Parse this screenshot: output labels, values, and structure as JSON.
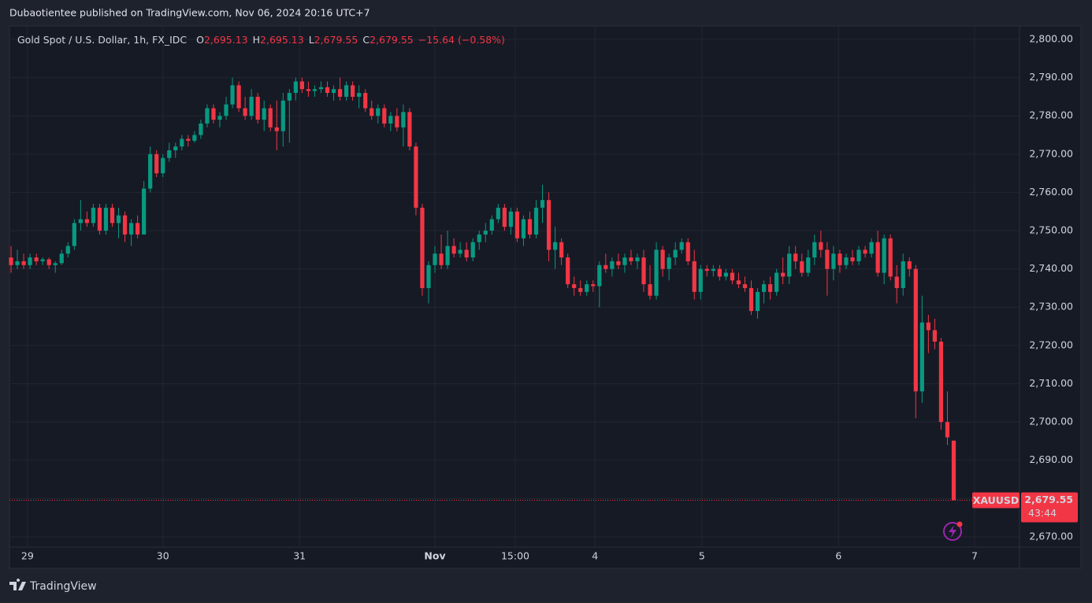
{
  "chart_data": {
    "type": "candlestick",
    "publisher": "Dubaotientee published on TradingView.com, Nov 06, 2024 20:16 UTC+7",
    "symbol": "Gold Spot / U.S. Dollar, 1h, FX_IDC",
    "ohlc_legend": [
      {
        "key": "O",
        "value": "2,695.13"
      },
      {
        "key": "H",
        "value": "2,695.13"
      },
      {
        "key": "L",
        "value": "2,679.55"
      },
      {
        "key": "C",
        "value": "2,679.55"
      }
    ],
    "change": "−15.64 (−0.58%)",
    "price_tag": {
      "symbol": "XAUUSD",
      "price": "2,679.55",
      "countdown": "43:44"
    },
    "brand": "TradingView",
    "up_color": "#089981",
    "down_color": "#f23645",
    "grid": true,
    "xlim": [
      -0.25,
      159.4
    ],
    "ylim": [
      2667.3,
      2803.5
    ],
    "xticks": [
      {
        "value": 2.6,
        "label": "29"
      },
      {
        "value": 24.0,
        "label": "30"
      },
      {
        "value": 45.6,
        "label": "31"
      },
      {
        "value": 67.0,
        "label": "Nov"
      },
      {
        "value": 79.7,
        "label": "15:00"
      },
      {
        "value": 92.3,
        "label": "4"
      },
      {
        "value": 109.2,
        "label": "5"
      },
      {
        "value": 130.8,
        "label": "6"
      },
      {
        "value": 152.3,
        "label": "7"
      }
    ],
    "yticks": [
      {
        "value": 2670,
        "label": "2,670.00"
      },
      {
        "value": 2680,
        "label": "2,680.00"
      },
      {
        "value": 2690,
        "label": "2,690.00"
      },
      {
        "value": 2700,
        "label": "2,700.00"
      },
      {
        "value": 2710,
        "label": "2,710.00"
      },
      {
        "value": 2720,
        "label": "2,720.00"
      },
      {
        "value": 2730,
        "label": "2,730.00"
      },
      {
        "value": 2740,
        "label": "2,740.00"
      },
      {
        "value": 2750,
        "label": "2,750.00"
      },
      {
        "value": 2760,
        "label": "2,760.00"
      },
      {
        "value": 2770,
        "label": "2,770.00"
      },
      {
        "value": 2780,
        "label": "2,780.00"
      },
      {
        "value": 2790,
        "label": "2,790.00"
      },
      {
        "value": 2800,
        "label": "2,800.00"
      }
    ],
    "candles": [
      [
        2743,
        2746,
        2739,
        2741
      ],
      [
        2741,
        2745,
        2740,
        2742
      ],
      [
        2742,
        2744,
        2740,
        2741
      ],
      [
        2741,
        2744,
        2740,
        2743
      ],
      [
        2743,
        2744,
        2741,
        2742
      ],
      [
        2742,
        2743,
        2741,
        2742.5
      ],
      [
        2742.5,
        2743,
        2740,
        2741
      ],
      [
        2741,
        2742,
        2739,
        2741.5
      ],
      [
        2741.5,
        2745,
        2741,
        2744
      ],
      [
        2744,
        2747,
        2743,
        2746
      ],
      [
        2746,
        2753,
        2745,
        2752
      ],
      [
        2752,
        2758,
        2750,
        2753
      ],
      [
        2753,
        2755,
        2751,
        2752
      ],
      [
        2752,
        2757,
        2751,
        2756
      ],
      [
        2756,
        2757,
        2749,
        2750
      ],
      [
        2750,
        2757,
        2749,
        2756
      ],
      [
        2756,
        2757,
        2751,
        2752
      ],
      [
        2752,
        2756,
        2748,
        2754
      ],
      [
        2754,
        2755,
        2747,
        2749
      ],
      [
        2749,
        2753,
        2746,
        2752
      ],
      [
        2752,
        2754,
        2748,
        2749
      ],
      [
        2749,
        2763,
        2749,
        2761
      ],
      [
        2761,
        2772,
        2760,
        2770
      ],
      [
        2770,
        2771,
        2764,
        2765
      ],
      [
        2765,
        2770,
        2764,
        2769
      ],
      [
        2769,
        2773,
        2768,
        2771
      ],
      [
        2771,
        2773,
        2769,
        2772
      ],
      [
        2772,
        2775,
        2771,
        2774
      ],
      [
        2774,
        2775,
        2772,
        2773.5
      ],
      [
        2773.5,
        2776,
        2773,
        2775
      ],
      [
        2775,
        2779,
        2774,
        2778
      ],
      [
        2778,
        2783,
        2777,
        2782
      ],
      [
        2782,
        2783,
        2778,
        2779
      ],
      [
        2779,
        2781,
        2777,
        2780
      ],
      [
        2780,
        2785,
        2779,
        2783
      ],
      [
        2783,
        2790,
        2782,
        2788
      ],
      [
        2788,
        2789,
        2781,
        2782
      ],
      [
        2782,
        2785,
        2779,
        2780
      ],
      [
        2780,
        2787,
        2779,
        2785
      ],
      [
        2785,
        2786,
        2778,
        2779
      ],
      [
        2779,
        2784,
        2776,
        2782
      ],
      [
        2782,
        2783,
        2776,
        2777
      ],
      [
        2777,
        2784,
        2771,
        2776
      ],
      [
        2776,
        2786,
        2772,
        2784
      ],
      [
        2784,
        2787,
        2773,
        2786
      ],
      [
        2786,
        2790,
        2784,
        2789
      ],
      [
        2789,
        2790,
        2786,
        2787
      ],
      [
        2787,
        2789,
        2785,
        2786.5
      ],
      [
        2786.5,
        2788,
        2785,
        2787
      ],
      [
        2787,
        2789,
        2786,
        2787.5
      ],
      [
        2787.5,
        2789,
        2785,
        2786
      ],
      [
        2786,
        2788,
        2784,
        2787
      ],
      [
        2787,
        2790,
        2784,
        2785
      ],
      [
        2785,
        2789,
        2784,
        2788
      ],
      [
        2788,
        2789,
        2784,
        2785
      ],
      [
        2785,
        2788,
        2782,
        2786
      ],
      [
        2786,
        2787,
        2781,
        2782
      ],
      [
        2782,
        2784,
        2779,
        2780
      ],
      [
        2780,
        2783,
        2778,
        2782
      ],
      [
        2782,
        2783,
        2777,
        2778
      ],
      [
        2778,
        2781,
        2776,
        2780
      ],
      [
        2780,
        2782,
        2776,
        2777
      ],
      [
        2777,
        2783,
        2772,
        2781
      ],
      [
        2781,
        2782,
        2771,
        2772
      ],
      [
        2772,
        2773,
        2754,
        2756
      ],
      [
        2756,
        2757,
        2733,
        2735
      ],
      [
        2735,
        2742,
        2731,
        2741
      ],
      [
        2741,
        2746,
        2739,
        2744
      ],
      [
        2744,
        2749,
        2740,
        2741
      ],
      [
        2741,
        2750,
        2740,
        2746
      ],
      [
        2746,
        2748,
        2743,
        2744
      ],
      [
        2744,
        2747,
        2743,
        2745
      ],
      [
        2745,
        2747,
        2742,
        2743
      ],
      [
        2743,
        2748,
        2742,
        2747
      ],
      [
        2747,
        2750,
        2745,
        2749
      ],
      [
        2749,
        2752,
        2747,
        2750
      ],
      [
        2750,
        2754,
        2749,
        2753
      ],
      [
        2753,
        2757,
        2752,
        2756
      ],
      [
        2756,
        2757,
        2750,
        2751
      ],
      [
        2751,
        2756,
        2749,
        2755
      ],
      [
        2755,
        2756,
        2747,
        2748
      ],
      [
        2748,
        2754,
        2746,
        2753
      ],
      [
        2753,
        2755,
        2748,
        2749
      ],
      [
        2749,
        2758,
        2748,
        2756
      ],
      [
        2756,
        2762,
        2752,
        2758
      ],
      [
        2758,
        2760,
        2742,
        2745
      ],
      [
        2745,
        2751,
        2740,
        2747
      ],
      [
        2747,
        2748,
        2741,
        2743
      ],
      [
        2743,
        2744,
        2735,
        2736
      ],
      [
        2736,
        2738,
        2733,
        2735
      ],
      [
        2735,
        2737,
        2733,
        2734
      ],
      [
        2734,
        2737,
        2733,
        2736
      ],
      [
        2736,
        2737,
        2734,
        2735.5
      ],
      [
        2735.5,
        2742,
        2730,
        2741
      ],
      [
        2741,
        2744,
        2739,
        2740
      ],
      [
        2740,
        2743,
        2738,
        2742
      ],
      [
        2742,
        2744,
        2740,
        2741
      ],
      [
        2741,
        2744,
        2739,
        2743
      ],
      [
        2743,
        2745,
        2741,
        2742
      ],
      [
        2742,
        2744,
        2740,
        2743
      ],
      [
        2743,
        2745,
        2734,
        2736
      ],
      [
        2736,
        2741,
        2732,
        2733
      ],
      [
        2733,
        2747,
        2732,
        2745
      ],
      [
        2745,
        2746,
        2738,
        2740
      ],
      [
        2740,
        2744,
        2737,
        2743
      ],
      [
        2743,
        2747,
        2741,
        2745
      ],
      [
        2745,
        2748,
        2744,
        2747
      ],
      [
        2747,
        2748,
        2741,
        2742
      ],
      [
        2742,
        2745,
        2732,
        2734
      ],
      [
        2734,
        2741,
        2732,
        2740
      ],
      [
        2740,
        2741,
        2738,
        2739.5
      ],
      [
        2739.5,
        2741,
        2738,
        2740
      ],
      [
        2740,
        2741,
        2737,
        2738
      ],
      [
        2738,
        2740,
        2737,
        2739
      ],
      [
        2739,
        2740,
        2736,
        2737
      ],
      [
        2737,
        2739,
        2735,
        2736
      ],
      [
        2736,
        2738,
        2734,
        2735
      ],
      [
        2735,
        2737,
        2728,
        2729
      ],
      [
        2729,
        2735,
        2727,
        2734
      ],
      [
        2734,
        2737,
        2731,
        2736
      ],
      [
        2736,
        2738,
        2732,
        2734
      ],
      [
        2734,
        2740,
        2733,
        2739
      ],
      [
        2739,
        2743,
        2736,
        2738
      ],
      [
        2738,
        2746,
        2736,
        2744
      ],
      [
        2744,
        2746,
        2740,
        2742
      ],
      [
        2742,
        2744,
        2738,
        2739
      ],
      [
        2739,
        2745,
        2738,
        2743
      ],
      [
        2743,
        2749,
        2741,
        2747
      ],
      [
        2747,
        2750,
        2743,
        2745
      ],
      [
        2745,
        2747,
        2733,
        2740
      ],
      [
        2740,
        2746,
        2737,
        2744
      ],
      [
        2744,
        2745,
        2739,
        2741
      ],
      [
        2741,
        2744,
        2740,
        2743
      ],
      [
        2743,
        2745,
        2741,
        2742
      ],
      [
        2742,
        2746,
        2741,
        2745
      ],
      [
        2745,
        2746,
        2743,
        2744
      ],
      [
        2744,
        2748,
        2743,
        2747
      ],
      [
        2747,
        2750,
        2738,
        2739
      ],
      [
        2739,
        2749,
        2736,
        2748
      ],
      [
        2748,
        2749,
        2737,
        2738
      ],
      [
        2738,
        2741,
        2731,
        2735
      ],
      [
        2735,
        2744,
        2733,
        2742
      ],
      [
        2742,
        2743,
        2738,
        2740
      ],
      [
        2740,
        2741,
        2701,
        2708
      ],
      [
        2708,
        2733,
        2705,
        2726
      ],
      [
        2726,
        2728,
        2718,
        2724
      ],
      [
        2724,
        2727,
        2719,
        2721
      ],
      [
        2721,
        2722,
        2698,
        2700
      ],
      [
        2700,
        2708,
        2694,
        2696
      ],
      [
        2695.13,
        2695.13,
        2679.55,
        2679.55
      ]
    ]
  }
}
